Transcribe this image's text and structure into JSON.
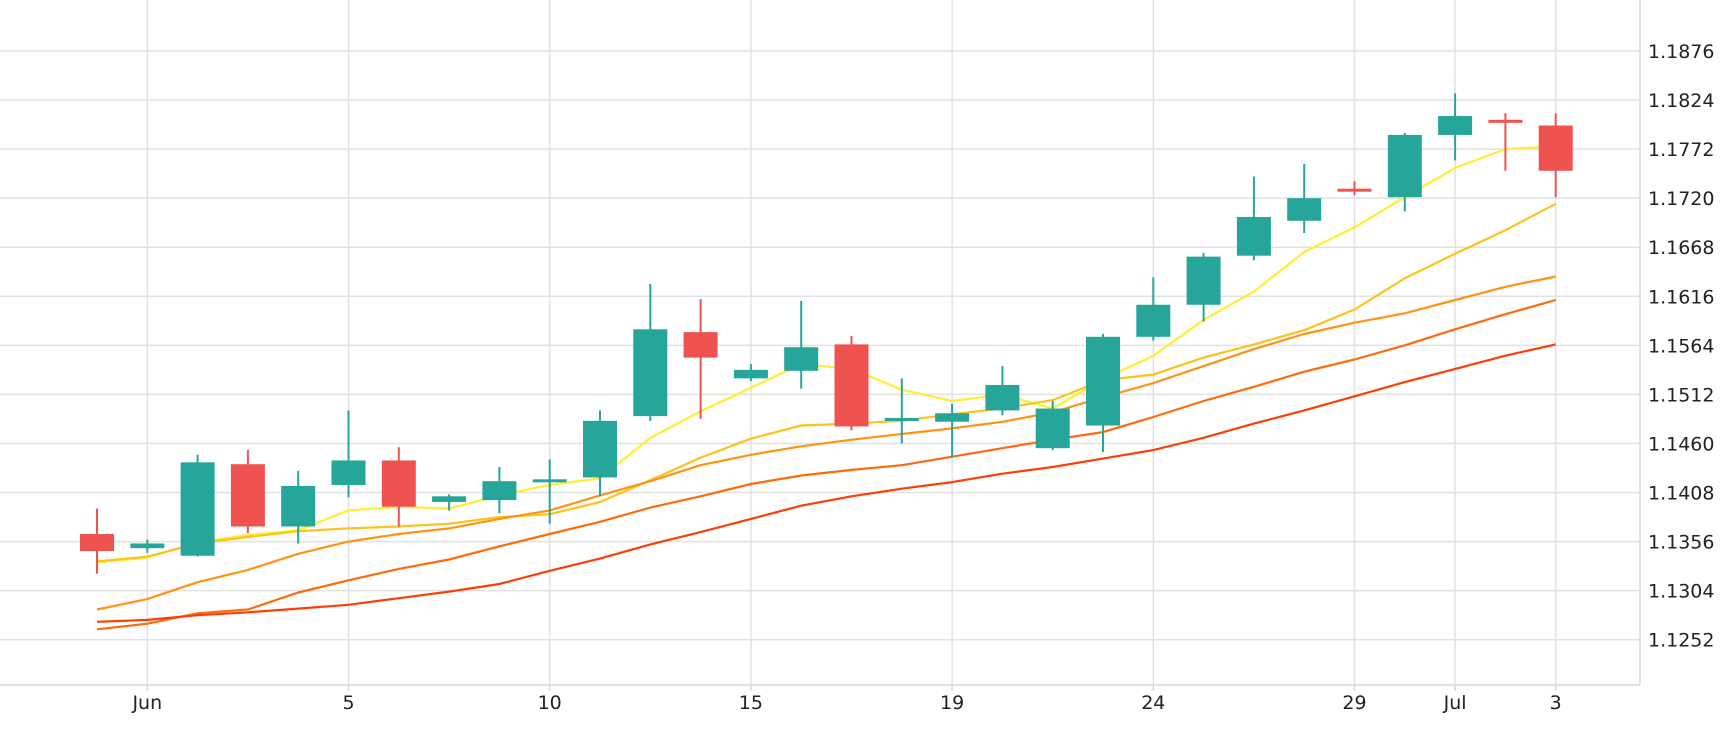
{
  "chart_data": {
    "type": "candlestick",
    "grid": true,
    "y_axis_position": "right",
    "ylim": [
      1.1204,
      1.193
    ],
    "y_ticks": [
      "1.1252",
      "1.1304",
      "1.1356",
      "1.1408",
      "1.1460",
      "1.1512",
      "1.1564",
      "1.1616",
      "1.1668",
      "1.1720",
      "1.1772",
      "1.1824",
      "1.1876"
    ],
    "x_tick_labels": [
      {
        "label": "Jun",
        "index": 1
      },
      {
        "label": "5",
        "index": 5
      },
      {
        "label": "10",
        "index": 9
      },
      {
        "label": "15",
        "index": 13
      },
      {
        "label": "19",
        "index": 17
      },
      {
        "label": "24",
        "index": 21
      },
      {
        "label": "29",
        "index": 25
      },
      {
        "label": "Jul",
        "index": 27
      },
      {
        "label": "3",
        "index": 29
      }
    ],
    "colors": {
      "up": "#26a69a",
      "down": "#ef5350",
      "ma_1": "#ffee33",
      "ma_2": "#ffc21a",
      "ma_3": "#ff9314",
      "ma_4": "#ff6a0d",
      "ma_5": "#ff3d06"
    },
    "candles": [
      {
        "o": 1.1364,
        "h": 1.1391,
        "l": 1.1322,
        "c": 1.1346
      },
      {
        "o": 1.1349,
        "h": 1.1358,
        "l": 1.1344,
        "c": 1.1354
      },
      {
        "o": 1.1341,
        "h": 1.1448,
        "l": 1.134,
        "c": 1.144
      },
      {
        "o": 1.1438,
        "h": 1.1453,
        "l": 1.1365,
        "c": 1.1372
      },
      {
        "o": 1.1372,
        "h": 1.1431,
        "l": 1.1354,
        "c": 1.1415
      },
      {
        "o": 1.1416,
        "h": 1.1495,
        "l": 1.1403,
        "c": 1.1442
      },
      {
        "o": 1.1442,
        "h": 1.1456,
        "l": 1.1372,
        "c": 1.1393
      },
      {
        "o": 1.1398,
        "h": 1.1406,
        "l": 1.1389,
        "c": 1.1404
      },
      {
        "o": 1.14,
        "h": 1.1435,
        "l": 1.1386,
        "c": 1.142
      },
      {
        "o": 1.142,
        "h": 1.1443,
        "l": 1.1375,
        "c": 1.1422
      },
      {
        "o": 1.1424,
        "h": 1.1495,
        "l": 1.1404,
        "c": 1.1484
      },
      {
        "o": 1.1489,
        "h": 1.1629,
        "l": 1.1484,
        "c": 1.1581
      },
      {
        "o": 1.1578,
        "h": 1.1613,
        "l": 1.1486,
        "c": 1.1551
      },
      {
        "o": 1.1529,
        "h": 1.1544,
        "l": 1.1526,
        "c": 1.1538
      },
      {
        "o": 1.1537,
        "h": 1.1611,
        "l": 1.1518,
        "c": 1.1562
      },
      {
        "o": 1.1565,
        "h": 1.1574,
        "l": 1.1474,
        "c": 1.1478
      },
      {
        "o": 1.1487,
        "h": 1.1529,
        "l": 1.146,
        "c": 1.1487
      },
      {
        "o": 1.1483,
        "h": 1.1502,
        "l": 1.1445,
        "c": 1.1492
      },
      {
        "o": 1.1495,
        "h": 1.1542,
        "l": 1.149,
        "c": 1.1522
      },
      {
        "o": 1.1455,
        "h": 1.1505,
        "l": 1.1453,
        "c": 1.1497
      },
      {
        "o": 1.1479,
        "h": 1.1576,
        "l": 1.1451,
        "c": 1.1573
      },
      {
        "o": 1.1573,
        "h": 1.1636,
        "l": 1.1569,
        "c": 1.1607
      },
      {
        "o": 1.1607,
        "h": 1.1662,
        "l": 1.1589,
        "c": 1.1658
      },
      {
        "o": 1.1659,
        "h": 1.1743,
        "l": 1.1654,
        "c": 1.17
      },
      {
        "o": 1.1696,
        "h": 1.1756,
        "l": 1.1683,
        "c": 1.172
      },
      {
        "o": 1.173,
        "h": 1.1738,
        "l": 1.1723,
        "c": 1.1728
      },
      {
        "o": 1.1721,
        "h": 1.1789,
        "l": 1.1706,
        "c": 1.1787
      },
      {
        "o": 1.1787,
        "h": 1.1831,
        "l": 1.176,
        "c": 1.1807
      },
      {
        "o": 1.1803,
        "h": 1.181,
        "l": 1.1749,
        "c": 1.1801
      },
      {
        "o": 1.1797,
        "h": 1.181,
        "l": 1.1721,
        "c": 1.1749
      }
    ],
    "moving_averages": [
      {
        "color_key": "ma_1",
        "values": [
          1.1334,
          1.1339,
          1.1355,
          1.1363,
          1.1368,
          1.1389,
          1.1393,
          1.1391,
          1.1405,
          1.1416,
          1.1423,
          1.1466,
          1.1494,
          1.1519,
          1.1544,
          1.1539,
          1.1517,
          1.1505,
          1.1512,
          1.1497,
          1.1528,
          1.1553,
          1.1591,
          1.1621,
          1.1663,
          1.1689,
          1.1721,
          1.1752,
          1.1772,
          1.1775
        ]
      },
      {
        "color_key": "ma_2",
        "values": [
          1.1335,
          1.134,
          1.1354,
          1.1361,
          1.1367,
          1.137,
          1.1372,
          1.1375,
          1.1382,
          1.1385,
          1.1398,
          1.1421,
          1.1445,
          1.1465,
          1.1479,
          1.1481,
          1.1484,
          1.1491,
          1.1497,
          1.1506,
          1.1527,
          1.1533,
          1.1551,
          1.1565,
          1.158,
          1.1602,
          1.1635,
          1.1661,
          1.1686,
          1.1714
        ]
      },
      {
        "color_key": "ma_3",
        "values": [
          1.1284,
          1.1295,
          1.1313,
          1.1326,
          1.1343,
          1.1356,
          1.1364,
          1.137,
          1.138,
          1.1389,
          1.1405,
          1.142,
          1.1437,
          1.1448,
          1.1457,
          1.1464,
          1.147,
          1.1476,
          1.1483,
          1.1493,
          1.1509,
          1.1524,
          1.1542,
          1.156,
          1.1576,
          1.1588,
          1.1598,
          1.1612,
          1.1626,
          1.1637
        ]
      },
      {
        "color_key": "ma_4",
        "values": [
          1.1263,
          1.1269,
          1.128,
          1.1284,
          1.1302,
          1.1315,
          1.1327,
          1.1337,
          1.1351,
          1.1364,
          1.1377,
          1.1392,
          1.1404,
          1.1417,
          1.1426,
          1.1432,
          1.1437,
          1.1446,
          1.1455,
          1.1464,
          1.1472,
          1.1488,
          1.1505,
          1.152,
          1.1536,
          1.1549,
          1.1564,
          1.1581,
          1.1597,
          1.1612
        ]
      },
      {
        "color_key": "ma_5",
        "values": [
          1.1271,
          1.1273,
          1.1278,
          1.1281,
          1.1285,
          1.1289,
          1.1296,
          1.1303,
          1.1311,
          1.1325,
          1.1338,
          1.1353,
          1.1366,
          1.138,
          1.1394,
          1.1404,
          1.1412,
          1.1419,
          1.1428,
          1.1435,
          1.1444,
          1.1453,
          1.1466,
          1.1481,
          1.1495,
          1.151,
          1.1525,
          1.1539,
          1.1553,
          1.1565
        ]
      }
    ]
  }
}
